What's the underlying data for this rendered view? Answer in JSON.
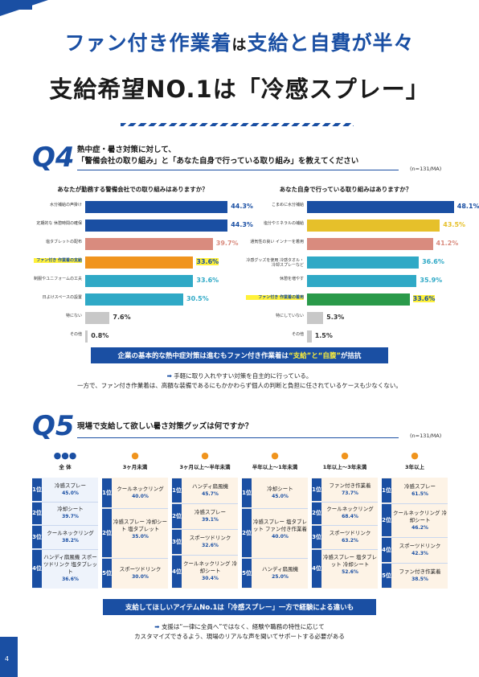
{
  "page_number": "4",
  "title": {
    "line1_a": "ファン付き作業着",
    "line1_b": "は",
    "line1_c": "支給と自費が半々",
    "line2_a": "支給希望NO.1",
    "line2_b": "は「冷感スプレー」"
  },
  "q4": {
    "label": "Q4",
    "title_line1": "熱中症・暑さ対策に対して、",
    "title_line2": "「警備会社の取り組み」と「あなた自身で行っている取り組み」を教えてください",
    "note": "(n=131/MA)",
    "left": {
      "heading": "あなたが勤務する警備会社での取り組みはありますか？",
      "items": [
        {
          "label": "水分補給の声掛け",
          "value": 44.3,
          "display": "44.3%",
          "color": "#1a4fa3",
          "hl": false
        },
        {
          "label": "定期的な 休憩時間の確保",
          "value": 44.3,
          "display": "44.3%",
          "color": "#1a4fa3",
          "hl": false
        },
        {
          "label": "塩タブレットの配布",
          "value": 39.7,
          "display": "39.7%",
          "color": "#d98b7e",
          "hl": false
        },
        {
          "label": "ファン付き 作業着の支給",
          "value": 33.6,
          "display": "33.6%",
          "color": "#f0941d",
          "hl": true
        },
        {
          "label": "制服やユニフォームの工夫",
          "value": 33.6,
          "display": "33.6%",
          "color": "#2fa9c6",
          "hl": false
        },
        {
          "label": "日よけスペースの設置",
          "value": 30.5,
          "display": "30.5%",
          "color": "#2fa9c6",
          "hl": false
        },
        {
          "label": "特にない",
          "value": 7.6,
          "display": "7.6%",
          "color": "#c8c8c8",
          "hl": false
        },
        {
          "label": "その他",
          "value": 0.8,
          "display": "0.8%",
          "color": "#c8c8c8",
          "hl": false
        }
      ]
    },
    "right": {
      "heading": "あなた自身で行っている取り組みはありますか？",
      "items": [
        {
          "label": "こまめに水分補給",
          "value": 48.1,
          "display": "48.1%",
          "color": "#1a4fa3",
          "hl": false
        },
        {
          "label": "塩分やミネラルの補給",
          "value": 43.5,
          "display": "43.5%",
          "color": "#e6c02a",
          "hl": false
        },
        {
          "label": "通気性の良い インナーを着用",
          "value": 41.2,
          "display": "41.2%",
          "color": "#d98b7e",
          "hl": false
        },
        {
          "label": "冷感グッズを使用 冷感タオル・冷却スプレーなど",
          "value": 36.6,
          "display": "36.6%",
          "color": "#2fa9c6",
          "hl": false
        },
        {
          "label": "休憩を増やす",
          "value": 35.9,
          "display": "35.9%",
          "color": "#2fa9c6",
          "hl": false
        },
        {
          "label": "ファン付き 作業着の着用",
          "value": 33.6,
          "display": "33.6%",
          "color": "#2a9a4a",
          "hl": true
        },
        {
          "label": "特にしていない",
          "value": 5.3,
          "display": "5.3%",
          "color": "#c8c8c8",
          "hl": false
        },
        {
          "label": "その他",
          "value": 1.5,
          "display": "1.5%",
          "color": "#c8c8c8",
          "hl": false
        }
      ]
    },
    "summary_a": "企業の基本的な熱中症対策は進むもファン付き作業着は",
    "summary_b": "“支給”と“自腹”",
    "summary_c": "が拮抗",
    "note_line1": "手軽に取り入れやすい対策を自主的に行っている。",
    "note_line2": "一方で、ファン付き作業着は、高額な装備であるにもかかわらず個人の判断と負担に任されているケースも少なくない。"
  },
  "q5": {
    "label": "Q5",
    "title": "現場で支給して欲しい暑さ対策グッズは何ですか？",
    "note": "(n=131/MA)",
    "columns": [
      {
        "head": "全 体",
        "ranks": [
          {
            "rank": "1位",
            "name": "冷感スプレー",
            "pct": "45.0%"
          },
          {
            "rank": "2位",
            "name": "冷却シート",
            "pct": "39.7%"
          },
          {
            "rank": "3位",
            "name": "クールネックリング",
            "pct": "38.2%"
          },
          {
            "rank": "4位",
            "name": "ハンディ扇風機 スポーツドリンク 塩タブレット",
            "pct": "36.6%"
          }
        ]
      },
      {
        "head": "3ヶ月未満",
        "ranks": [
          {
            "rank": "1位",
            "name": "クールネックリング",
            "pct": "40.0%"
          },
          {
            "rank": "2位",
            "name": "冷感スプレー 冷却シート 塩タブレット",
            "pct": "35.0%"
          },
          {
            "rank": "5位",
            "name": "スポーツドリンク",
            "pct": "30.0%"
          }
        ]
      },
      {
        "head": "3ヶ月以上～半年未満",
        "ranks": [
          {
            "rank": "1位",
            "name": "ハンディ扇風機",
            "pct": "45.7%"
          },
          {
            "rank": "2位",
            "name": "冷感スプレー",
            "pct": "39.1%"
          },
          {
            "rank": "3位",
            "name": "スポーツドリンク",
            "pct": "32.6%"
          },
          {
            "rank": "4位",
            "name": "クールネックリング 冷却シート",
            "pct": "30.4%"
          }
        ]
      },
      {
        "head": "半年以上～1年未満",
        "ranks": [
          {
            "rank": "1位",
            "name": "冷却シート",
            "pct": "45.0%"
          },
          {
            "rank": "2位",
            "name": "冷感スプレー 塩タブレット ファン付き作業着",
            "pct": "40.0%"
          },
          {
            "rank": "5位",
            "name": "ハンディ扇風機",
            "pct": "25.0%"
          }
        ]
      },
      {
        "head": "1年以上～3年未満",
        "ranks": [
          {
            "rank": "1位",
            "name": "ファン付き作業着",
            "pct": "73.7%"
          },
          {
            "rank": "2位",
            "name": "クールネックリング",
            "pct": "68.4%"
          },
          {
            "rank": "3位",
            "name": "スポーツドリンク",
            "pct": "63.2%"
          },
          {
            "rank": "4位",
            "name": "冷感スプレー 塩タブレット 冷却シート",
            "pct": "52.6%"
          }
        ]
      },
      {
        "head": "3年以上",
        "ranks": [
          {
            "rank": "1位",
            "name": "冷感スプレー",
            "pct": "61.5%"
          },
          {
            "rank": "2位",
            "name": "クールネックリング 冷却シート",
            "pct": "46.2%"
          },
          {
            "rank": "4位",
            "name": "スポーツドリンク",
            "pct": "42.3%"
          },
          {
            "rank": "5位",
            "name": "ファン付き作業着",
            "pct": "38.5%"
          }
        ]
      }
    ],
    "summary": "支給してほしいアイテムNo.1は「冷感スプレー」一方で経験による違いも",
    "note_line1": "支援は“一律に全員へ”ではなく、経験や職務の特性に応じて",
    "note_line2": "カスタマイズできるよう、現場のリアルな声を聞いてサポートする必要がある"
  }
}
